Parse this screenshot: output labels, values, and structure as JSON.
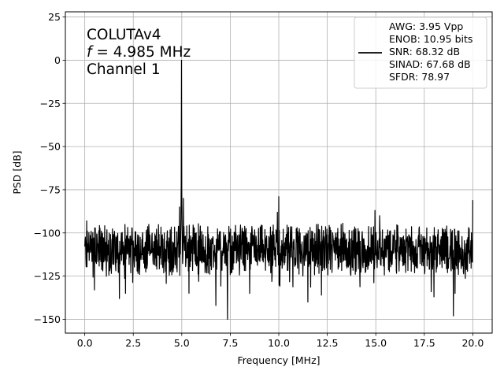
{
  "chart_data": {
    "type": "line",
    "title": "",
    "xlabel": "Frequency [MHz]",
    "ylabel": "PSD [dB]",
    "xlim": [
      -1.0,
      21.0
    ],
    "ylim": [
      -158,
      28
    ],
    "x_ticks": [
      0.0,
      2.5,
      5.0,
      7.5,
      10.0,
      12.5,
      15.0,
      17.5,
      20.0
    ],
    "x_tick_labels": [
      "0.0",
      "2.5",
      "5.0",
      "7.5",
      "10.0",
      "12.5",
      "15.0",
      "17.5",
      "20.0"
    ],
    "y_ticks": [
      25,
      0,
      -25,
      -50,
      -75,
      -100,
      -125,
      -150
    ],
    "y_tick_labels": [
      "25",
      "0",
      "−25",
      "−50",
      "−75",
      "−100",
      "−125",
      "−150"
    ],
    "grid": true,
    "annotation": {
      "line1": "COLUTAv4",
      "line2_italic": "f",
      "line2_rest": " = 4.985 MHz",
      "line3": "Channel 1"
    },
    "legend": {
      "position": "top-right",
      "entries": [
        "AWG: 3.95 Vpp",
        "ENOB: 10.95 bits",
        "SNR: 68.32 dB",
        "SINAD: 67.68 dB",
        "SFDR: 78.97"
      ]
    },
    "series": [
      {
        "color": "#000000",
        "noise_floor_db": -110,
        "x_start": 0.0,
        "x_end": 20.0,
        "peaks": [
          {
            "x": 4.985,
            "y": 0
          },
          {
            "x": 5.08,
            "y": -80
          },
          {
            "x": 4.88,
            "y": -85
          },
          {
            "x": 10.0,
            "y": -79
          },
          {
            "x": 9.93,
            "y": -88
          },
          {
            "x": 14.95,
            "y": -87
          },
          {
            "x": 15.2,
            "y": -90
          },
          {
            "x": 20.0,
            "y": -81
          },
          {
            "x": 0.1,
            "y": -93
          }
        ],
        "dips": [
          {
            "x": 0.5,
            "y": -133
          },
          {
            "x": 1.78,
            "y": -138
          },
          {
            "x": 2.1,
            "y": -135
          },
          {
            "x": 7.35,
            "y": -150
          },
          {
            "x": 6.75,
            "y": -142
          },
          {
            "x": 8.5,
            "y": -135
          },
          {
            "x": 12.2,
            "y": -136
          },
          {
            "x": 11.5,
            "y": -140
          },
          {
            "x": 18.0,
            "y": -137
          },
          {
            "x": 19.0,
            "y": -148
          }
        ]
      }
    ]
  }
}
